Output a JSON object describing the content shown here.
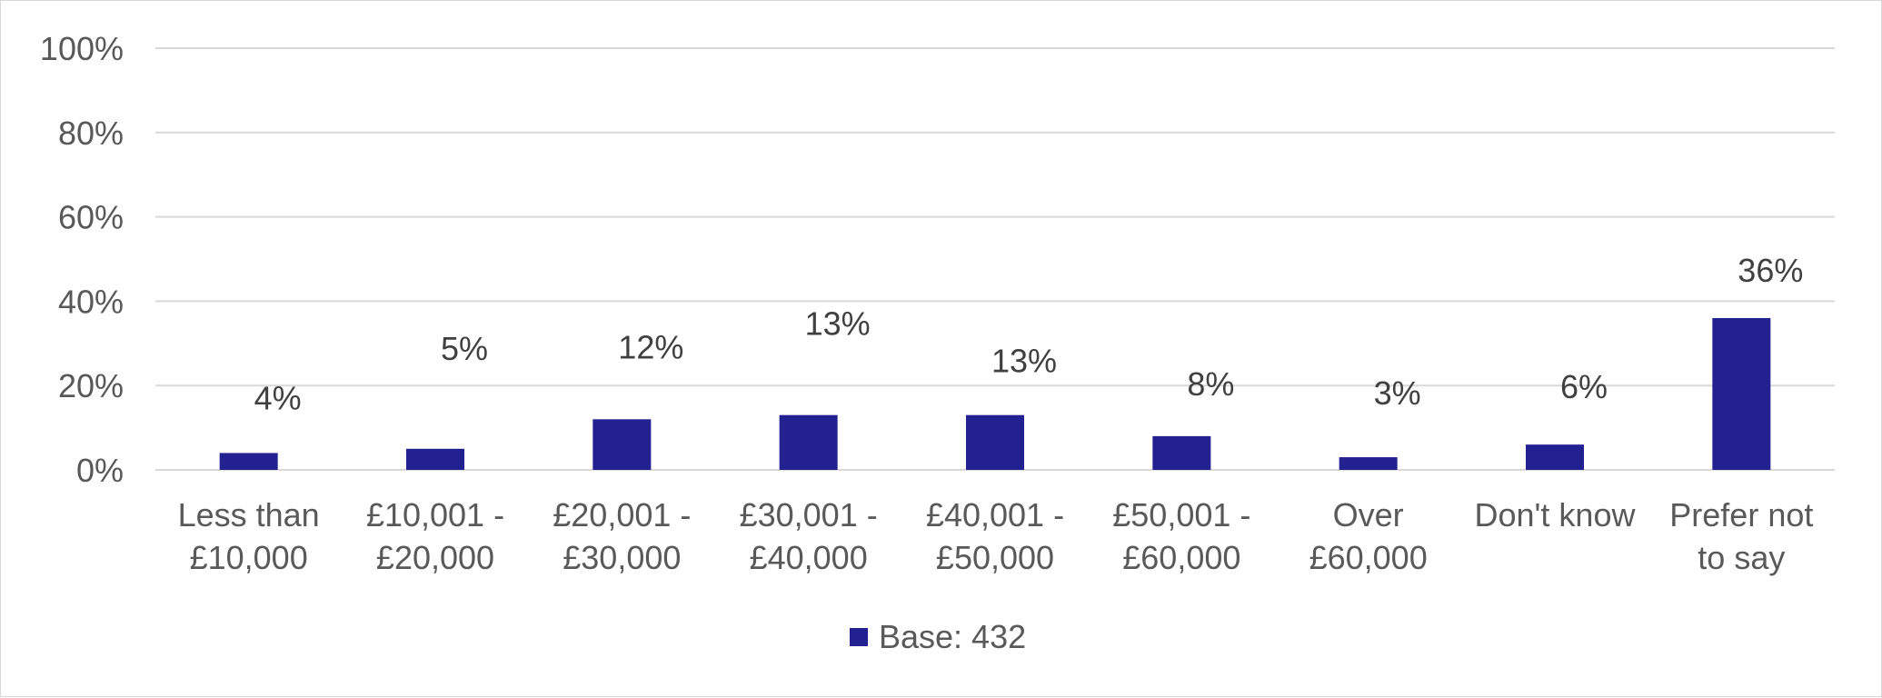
{
  "chart_data": {
    "type": "bar",
    "categories": [
      [
        "Less than",
        "£10,000"
      ],
      [
        "£10,001 -",
        "£20,000"
      ],
      [
        "£20,001 -",
        "£30,000"
      ],
      [
        "£30,001 -",
        "£40,000"
      ],
      [
        "£40,001 -",
        "£50,000"
      ],
      [
        "£50,001 -",
        "£60,000"
      ],
      [
        "Over",
        "£60,000"
      ],
      [
        "Don't know"
      ],
      [
        "Prefer not",
        "to say"
      ]
    ],
    "series": [
      {
        "name": "Base: 432",
        "values": [
          4,
          5,
          12,
          13,
          13,
          8,
          3,
          6,
          36
        ],
        "data_labels": [
          "4%",
          "5%",
          "12%",
          "13%",
          "13%",
          "8%",
          "3%",
          "6%",
          "36%"
        ],
        "color": "#232191"
      }
    ],
    "y_ticks": [
      "0%",
      "20%",
      "40%",
      "60%",
      "80%",
      "100%"
    ],
    "ylim": [
      0,
      100
    ],
    "grid": true,
    "legend_position": "bottom",
    "gridline_color": "#d9d9d9"
  }
}
